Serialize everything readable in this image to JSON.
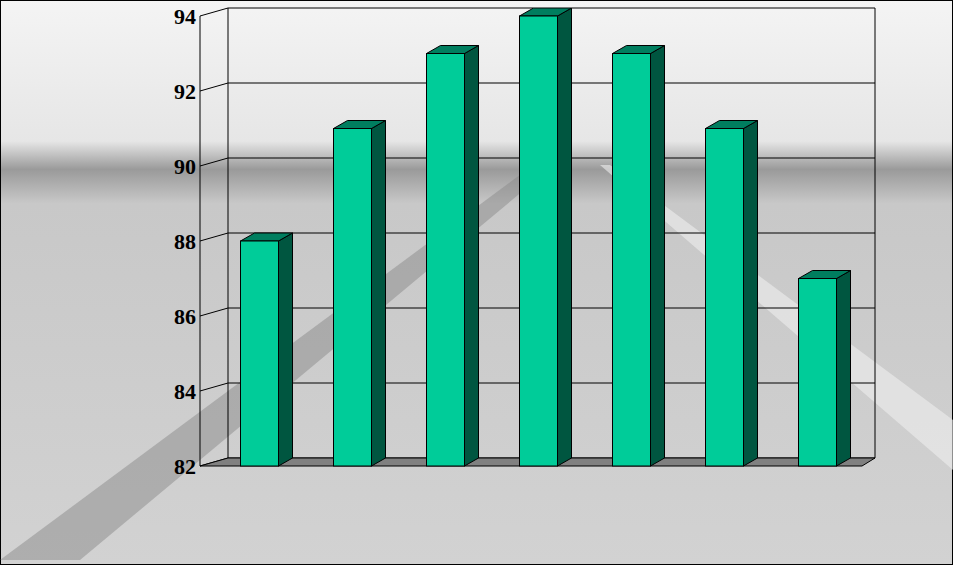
{
  "chart_data": {
    "type": "bar",
    "categories": [
      null,
      null,
      null,
      null,
      null,
      null,
      null
    ],
    "values": [
      88,
      91,
      93,
      94,
      93,
      91,
      87
    ],
    "color": "#00cc99",
    "ylim": [
      82,
      94
    ],
    "yticks": [
      82,
      84,
      86,
      88,
      90,
      92,
      94
    ],
    "grid": true
  }
}
